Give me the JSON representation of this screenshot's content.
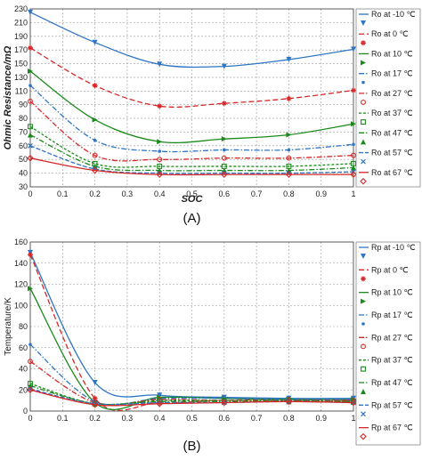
{
  "chart_data": [
    {
      "type": "line",
      "panel_label": "(A)",
      "xlabel": "SOC",
      "ylabel": "Ohmic Resistance/mΩ",
      "x": [
        0,
        0.2,
        0.4,
        0.6,
        0.8,
        1
      ],
      "xlim": [
        0,
        1
      ],
      "ylim": [
        30,
        230
      ],
      "xticks": [
        "0",
        "0.1",
        "0.2",
        "0.3",
        "0.4",
        "0.5",
        "0.6",
        "0.7",
        "0.8",
        "0.9",
        "1"
      ],
      "yticks": [
        "30",
        "40",
        "50",
        "60",
        "70",
        "80",
        "90",
        "110",
        "130",
        "150",
        "170",
        "190",
        "210",
        "230"
      ],
      "grid": true,
      "legend": "right",
      "series": [
        {
          "name": "Ro at  -10 ℃",
          "color": "#2e75c4",
          "dash": "",
          "marker": "tri-down",
          "values": [
            225,
            181,
            149,
            146,
            156,
            171
          ]
        },
        {
          "name": "Ro at  0 ℃",
          "color": "#d62728",
          "dash": "6,3",
          "marker": "star",
          "values": [
            173,
            118,
            89,
            92,
            99,
            111
          ]
        },
        {
          "name": "Ro at  10 ℃",
          "color": "#1a8a1a",
          "dash": "",
          "marker": "tri-right",
          "values": [
            139,
            79,
            63,
            65,
            68,
            76
          ]
        },
        {
          "name": "Ro at  17 ℃",
          "color": "#2e75c4",
          "dash": "6,2,1.5,2",
          "marker": "dot",
          "values": [
            118,
            64,
            56,
            57,
            57,
            61
          ]
        },
        {
          "name": "Ro at  27 ℃",
          "color": "#d62728",
          "dash": "6,2,1.5,2",
          "marker": "circle",
          "values": [
            95,
            53,
            50,
            51,
            51,
            53
          ]
        },
        {
          "name": "Ro at  37 ℃",
          "color": "#1a8a1a",
          "dash": "3,2",
          "marker": "square",
          "values": [
            74,
            47,
            45,
            45,
            45,
            47
          ]
        },
        {
          "name": "Ro at  47 ℃",
          "color": "#1a8a1a",
          "dash": "6,2,1.5,2",
          "marker": "tri-up",
          "values": [
            68,
            45,
            42,
            42,
            42,
            44
          ]
        },
        {
          "name": "Ro at  57 ℃",
          "color": "#2e75c4",
          "dash": "5,2",
          "marker": "x",
          "values": [
            60,
            43,
            40,
            40,
            40,
            41
          ]
        },
        {
          "name": "Ro at  67 ℃",
          "color": "#d62728",
          "dash": "",
          "marker": "diamond",
          "values": [
            51,
            42,
            39,
            39,
            39,
            39
          ]
        }
      ]
    },
    {
      "type": "line",
      "panel_label": "(B)",
      "xlabel": "",
      "ylabel": "Temperature/K",
      "x": [
        0,
        0.2,
        0.4,
        0.6,
        0.8,
        1
      ],
      "xlim": [
        0,
        1
      ],
      "ylim": [
        0,
        160
      ],
      "xticks": [
        "0",
        "0.1",
        "0.2",
        "0.3",
        "0.4",
        "0.5",
        "0.6",
        "0.7",
        "0.8",
        "0.9",
        "1"
      ],
      "yticks": [
        "0",
        "20",
        "40",
        "60",
        "80",
        "100",
        "120",
        "140",
        "160"
      ],
      "grid": true,
      "legend": "right",
      "series": [
        {
          "name": "Rp at  -10 ℃",
          "color": "#2e75c4",
          "dash": "",
          "marker": "tri-down",
          "values": [
            150,
            27,
            15,
            13,
            12,
            12
          ]
        },
        {
          "name": "Rp at  0 ℃",
          "color": "#d62728",
          "dash": "6,3",
          "marker": "star",
          "values": [
            148,
            12,
            8,
            10,
            11,
            10
          ]
        },
        {
          "name": "Rp at  10 ℃",
          "color": "#1a8a1a",
          "dash": "",
          "marker": "tri-right",
          "values": [
            116,
            8,
            13,
            12,
            11,
            11
          ]
        },
        {
          "name": "Rp at  17 ℃",
          "color": "#2e75c4",
          "dash": "6,2,1.5,2",
          "marker": "dot",
          "values": [
            63,
            9,
            12,
            12,
            11,
            11
          ]
        },
        {
          "name": "Rp at  27 ℃",
          "color": "#d62728",
          "dash": "6,2,1.5,2",
          "marker": "circle",
          "values": [
            47,
            8,
            11,
            10,
            10,
            10
          ]
        },
        {
          "name": "Rp at  37 ℃",
          "color": "#1a8a1a",
          "dash": "3,2",
          "marker": "square",
          "values": [
            26,
            7,
            10,
            10,
            10,
            9
          ]
        },
        {
          "name": "Rp at  47 ℃",
          "color": "#1a8a1a",
          "dash": "6,2,1.5,2",
          "marker": "tri-up",
          "values": [
            24,
            7,
            9,
            9,
            9,
            9
          ]
        },
        {
          "name": "Rp at  57 ℃",
          "color": "#2e75c4",
          "dash": "5,2",
          "marker": "x",
          "values": [
            21,
            7,
            8,
            8,
            9,
            8
          ]
        },
        {
          "name": "Rp at  67 ℃",
          "color": "#d62728",
          "dash": "",
          "marker": "diamond",
          "values": [
            20,
            6,
            7,
            8,
            9,
            8
          ]
        }
      ]
    }
  ]
}
